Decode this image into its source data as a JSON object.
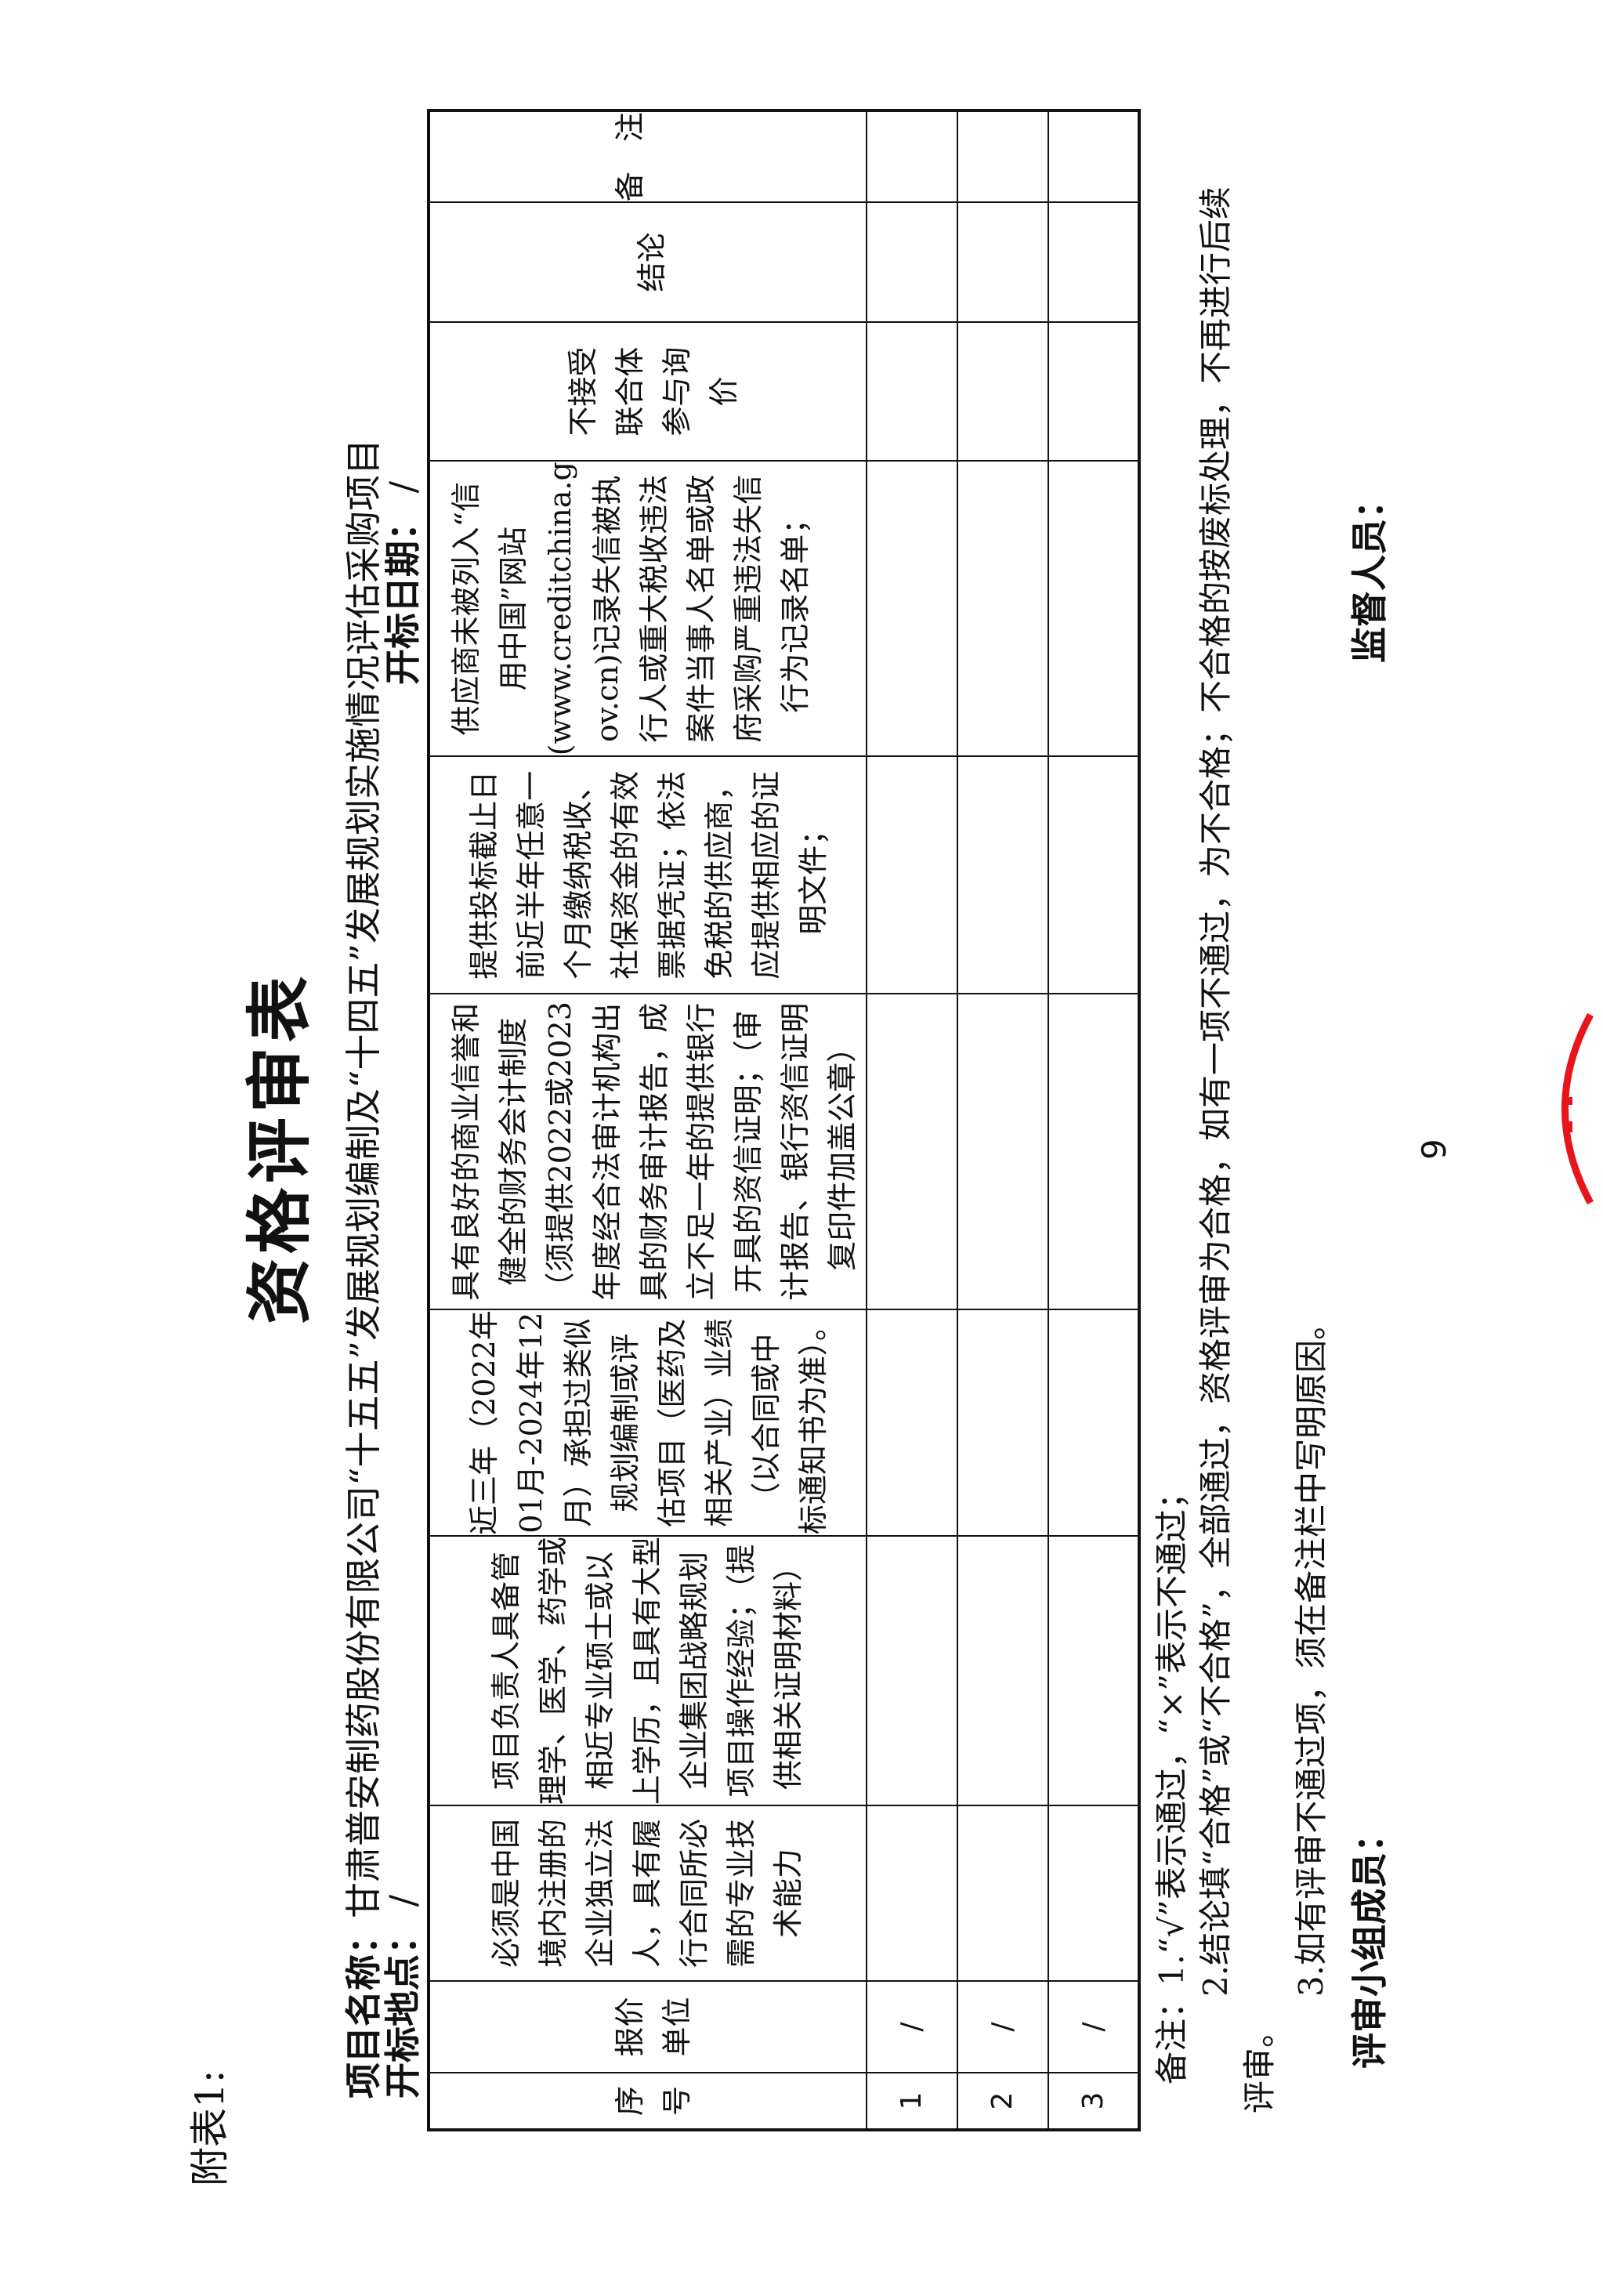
{
  "appendix_label": "附表1:",
  "title": "资格评审表",
  "project": {
    "label": "项目名称：",
    "value": "甘肃普安制药股份有限公司“十五五”发展规划编制及“十四五”发展规划实施情况评估采购项目"
  },
  "bid_location": {
    "label": "开标地点：",
    "value": " /"
  },
  "bid_date": {
    "label": "开标日期：",
    "value": " /"
  },
  "table": {
    "headers": [
      {
        "lines": [
          "序",
          "号"
        ]
      },
      {
        "lines": [
          "报价",
          "单位"
        ]
      },
      {
        "lines": [
          "必须是中国",
          "境内注册的",
          "企业独立法",
          "人，具有履",
          "行合同所必",
          "需的专业技",
          "术能力"
        ]
      },
      {
        "lines": [
          "项目负责人具备管",
          "理学、医学、药学或",
          "相近专业硕士或以",
          "上学历，且具有大型",
          "企业集团战略规划",
          "项目操作经验；（提",
          "供相关证明材料）"
        ]
      },
      {
        "lines": [
          "近三年（2022年",
          "01月-2024年12",
          "月）承担过类似",
          "规划编制或评",
          "估项目（医药及",
          "相关产业）业绩",
          "（以合同或中",
          "标通知书为准）。"
        ]
      },
      {
        "lines": [
          "具有良好的商业信誉和",
          "健全的财务会计制度",
          "（须提供2022或2023",
          "年度经合法审计机构出",
          "具的财务审计报告，成",
          "立不足一年的提供银行",
          "开具的资信证明；（审",
          "计报告、银行资信证明",
          "复印件加盖公章）"
        ]
      },
      {
        "lines": [
          "提供投标截止日",
          "前近半年任意一",
          "个月缴纳税收、",
          "社保资金的有效",
          "票据凭证；依法",
          "免税的供应商，",
          "应提供相应的证",
          "明文件；"
        ]
      },
      {
        "lines": [
          "供应商未被列入“信",
          "用中国”网站",
          "(www.creditchina.g",
          "ov.cn)记录失信被执",
          "行人或重大税收违法",
          "案件当事人名单或政",
          "府采购严重违法失信",
          "行为记录名单；"
        ]
      },
      {
        "lines": [
          "不接受",
          "联合体",
          "参与询",
          "价"
        ]
      },
      {
        "lines": [
          "结论"
        ]
      },
      {
        "lines": [
          "备　注"
        ]
      }
    ],
    "rows": [
      {
        "index": "1",
        "bidder": "/"
      },
      {
        "index": "2",
        "bidder": "/"
      },
      {
        "index": "3",
        "bidder": "/"
      }
    ]
  },
  "notes": [
    "备注：1.“√”表示通过，“×”表示不通过；",
    "2.结论填“合格”或“不合格”，全部通过，资格评审为合格，如有一项不通过，为不合格；不合格的按废标处理，不再进行后续",
    "评审。",
    "3.如有评审不通过项，须在备注栏中写明原因。"
  ],
  "signatures": {
    "panel": "评审小组成员：",
    "supervisor": "监督人员："
  },
  "page_number": "9",
  "stamp_color": "#e8141c"
}
